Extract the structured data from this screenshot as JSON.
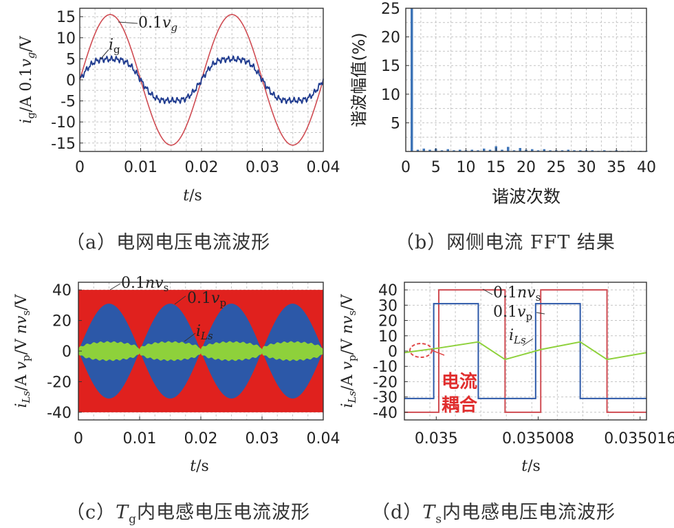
{
  "colors": {
    "red": "#cf4b52",
    "blue": "#1f3b8f",
    "fill_red": "#e0211e",
    "fill_blue": "#2c58a8",
    "green": "#8ed13b",
    "bar_blue": "#3e74b7",
    "grid": "#c4c4c4"
  },
  "captions": {
    "a": "（a）电网电压电流波形",
    "b": "（b）网侧电流 FFT 结果",
    "c": "（c）",
    "c_T": "T",
    "c_sub": "g",
    "c_rest": "内电感电压电流波形",
    "d": "（d）",
    "d_T": "T",
    "d_sub": "s",
    "d_rest": "内电感电压电流波形"
  },
  "chart_data": [
    {
      "id": "a",
      "type": "line",
      "xlabel": "t/s",
      "ylabel": "ig/A  0.1vg/V",
      "xlim": [
        0,
        0.04
      ],
      "ylim": [
        -17,
        17
      ],
      "xticks": [
        0,
        0.01,
        0.02,
        0.03,
        0.04
      ],
      "xtick_labels": [
        "0",
        "0.01",
        "0.02",
        "0.03",
        "0.04"
      ],
      "yticks": [
        -15,
        -10,
        -5,
        0,
        5,
        10,
        15
      ],
      "ytick_labels": [
        "-15",
        "-10",
        "-5",
        "0",
        "5",
        "10",
        "15"
      ],
      "grid": true,
      "series": [
        {
          "name": "0.1vg",
          "kind": "sine",
          "amplitude": 15.5,
          "frequency_hz": 50,
          "color": "#cf4b52"
        },
        {
          "name": "ig",
          "kind": "sine",
          "amplitude": 5.5,
          "frequency_hz": 50,
          "color": "#1f3b8f"
        }
      ],
      "annotations": [
        "0.1vg",
        "ig"
      ]
    },
    {
      "id": "b",
      "type": "bar",
      "xlabel": "谐波次数",
      "ylabel": "谐波幅值(%)",
      "xlim": [
        0,
        40
      ],
      "ylim": [
        0,
        25
      ],
      "xticks": [
        0,
        5,
        10,
        15,
        20,
        25,
        30,
        35,
        40
      ],
      "yticks": [
        5,
        10,
        15,
        20,
        25
      ],
      "grid": true,
      "bars": {
        "orders": [
          1,
          2,
          3,
          4,
          5,
          6,
          7,
          8,
          9,
          10,
          11,
          12,
          13,
          14,
          15,
          16,
          17,
          18,
          19,
          20,
          21,
          22,
          23,
          24,
          25,
          26,
          27,
          28,
          29,
          30,
          31,
          32,
          33,
          34,
          35,
          36,
          37,
          38,
          39,
          40
        ],
        "values": [
          25,
          0.3,
          0.5,
          0.3,
          0.5,
          0.2,
          0.4,
          0.2,
          0.3,
          0.2,
          0.3,
          0.2,
          0.5,
          0.3,
          0.9,
          0.3,
          0.8,
          0.2,
          0.6,
          0.3,
          0.4,
          0.2,
          0.4,
          0.2,
          0.2,
          0.2,
          0.3,
          0.2,
          0.2,
          0.2,
          0.2,
          0.1,
          0.2,
          0.1,
          0.2,
          0.1,
          0.1,
          0.1,
          0.1,
          0.1
        ]
      }
    },
    {
      "id": "c",
      "type": "area",
      "xlabel": "t/s",
      "ylabel": "iLs/A  vp/V  nvs/V",
      "xlim": [
        0,
        0.04
      ],
      "ylim": [
        -45,
        45
      ],
      "xticks": [
        0,
        0.01,
        0.02,
        0.03,
        0.04
      ],
      "xtick_labels": [
        "0",
        "0.01",
        "0.02",
        "0.03",
        "0.04"
      ],
      "yticks": [
        -40,
        -20,
        0,
        20,
        40
      ],
      "ytick_labels": [
        "-40",
        "-20",
        "0",
        "20",
        "40"
      ],
      "grid": true,
      "series": [
        {
          "name": "0.1nvs",
          "kind": "band",
          "value": 40,
          "color": "#e0211e"
        },
        {
          "name": "0.1vp",
          "kind": "abs_sine_envelope",
          "amplitude": 31,
          "frequency_hz": 50,
          "color": "#2c58a8"
        },
        {
          "name": "iLs",
          "kind": "envelope",
          "amplitude": 6,
          "color": "#8ed13b"
        }
      ],
      "annotations": [
        "0.1nvs",
        "0.1vp",
        "iLs"
      ]
    },
    {
      "id": "d",
      "type": "line",
      "xlabel": "t/s",
      "ylabel": "iLs/A  vp/V  nvs/V",
      "xlim": [
        0.0349975,
        0.0350165
      ],
      "ylim": [
        -45,
        45
      ],
      "xticks": [
        0.035,
        0.035008,
        0.035016
      ],
      "xtick_labels": [
        "0.035",
        "0.035008",
        "0.035016"
      ],
      "yticks": [
        -40,
        -30,
        -20,
        -10,
        0,
        10,
        20,
        30,
        40
      ],
      "ytick_labels": [
        "-40",
        "-30",
        "-20",
        "-10",
        "0",
        "10",
        "20",
        "30",
        "40"
      ],
      "grid": true,
      "series": [
        {
          "name": "0.1nvs",
          "color": "#cf4b52",
          "x": [
            0.0349975,
            0.0350002,
            0.0350002,
            0.0350054,
            0.0350054,
            0.0350082,
            0.0350082,
            0.0350134,
            0.0350134,
            0.0350165
          ],
          "y": [
            -40,
            -40,
            40,
            40,
            -40,
            -40,
            40,
            40,
            -40,
            -40
          ]
        },
        {
          "name": "0.1vp",
          "color": "#2c58a8",
          "x": [
            0.0349975,
            0.0349998,
            0.0349998,
            0.0350033,
            0.0350033,
            0.0350078,
            0.0350078,
            0.0350113,
            0.0350113,
            0.0350165
          ],
          "y": [
            -31,
            -31,
            31,
            31,
            -31,
            -31,
            31,
            31,
            -31,
            -31
          ]
        },
        {
          "name": "iLs",
          "color": "#8ed13b",
          "x": [
            0.0349975,
            0.0350002,
            0.0350033,
            0.0350054,
            0.0350082,
            0.0350113,
            0.0350134,
            0.0350165
          ],
          "y": [
            -1,
            2,
            6,
            -5.5,
            1,
            6,
            -5.5,
            -1
          ]
        }
      ],
      "annotations": [
        "0.1nvs",
        "0.1vp",
        "iLs",
        "电流",
        "耦合"
      ]
    }
  ]
}
